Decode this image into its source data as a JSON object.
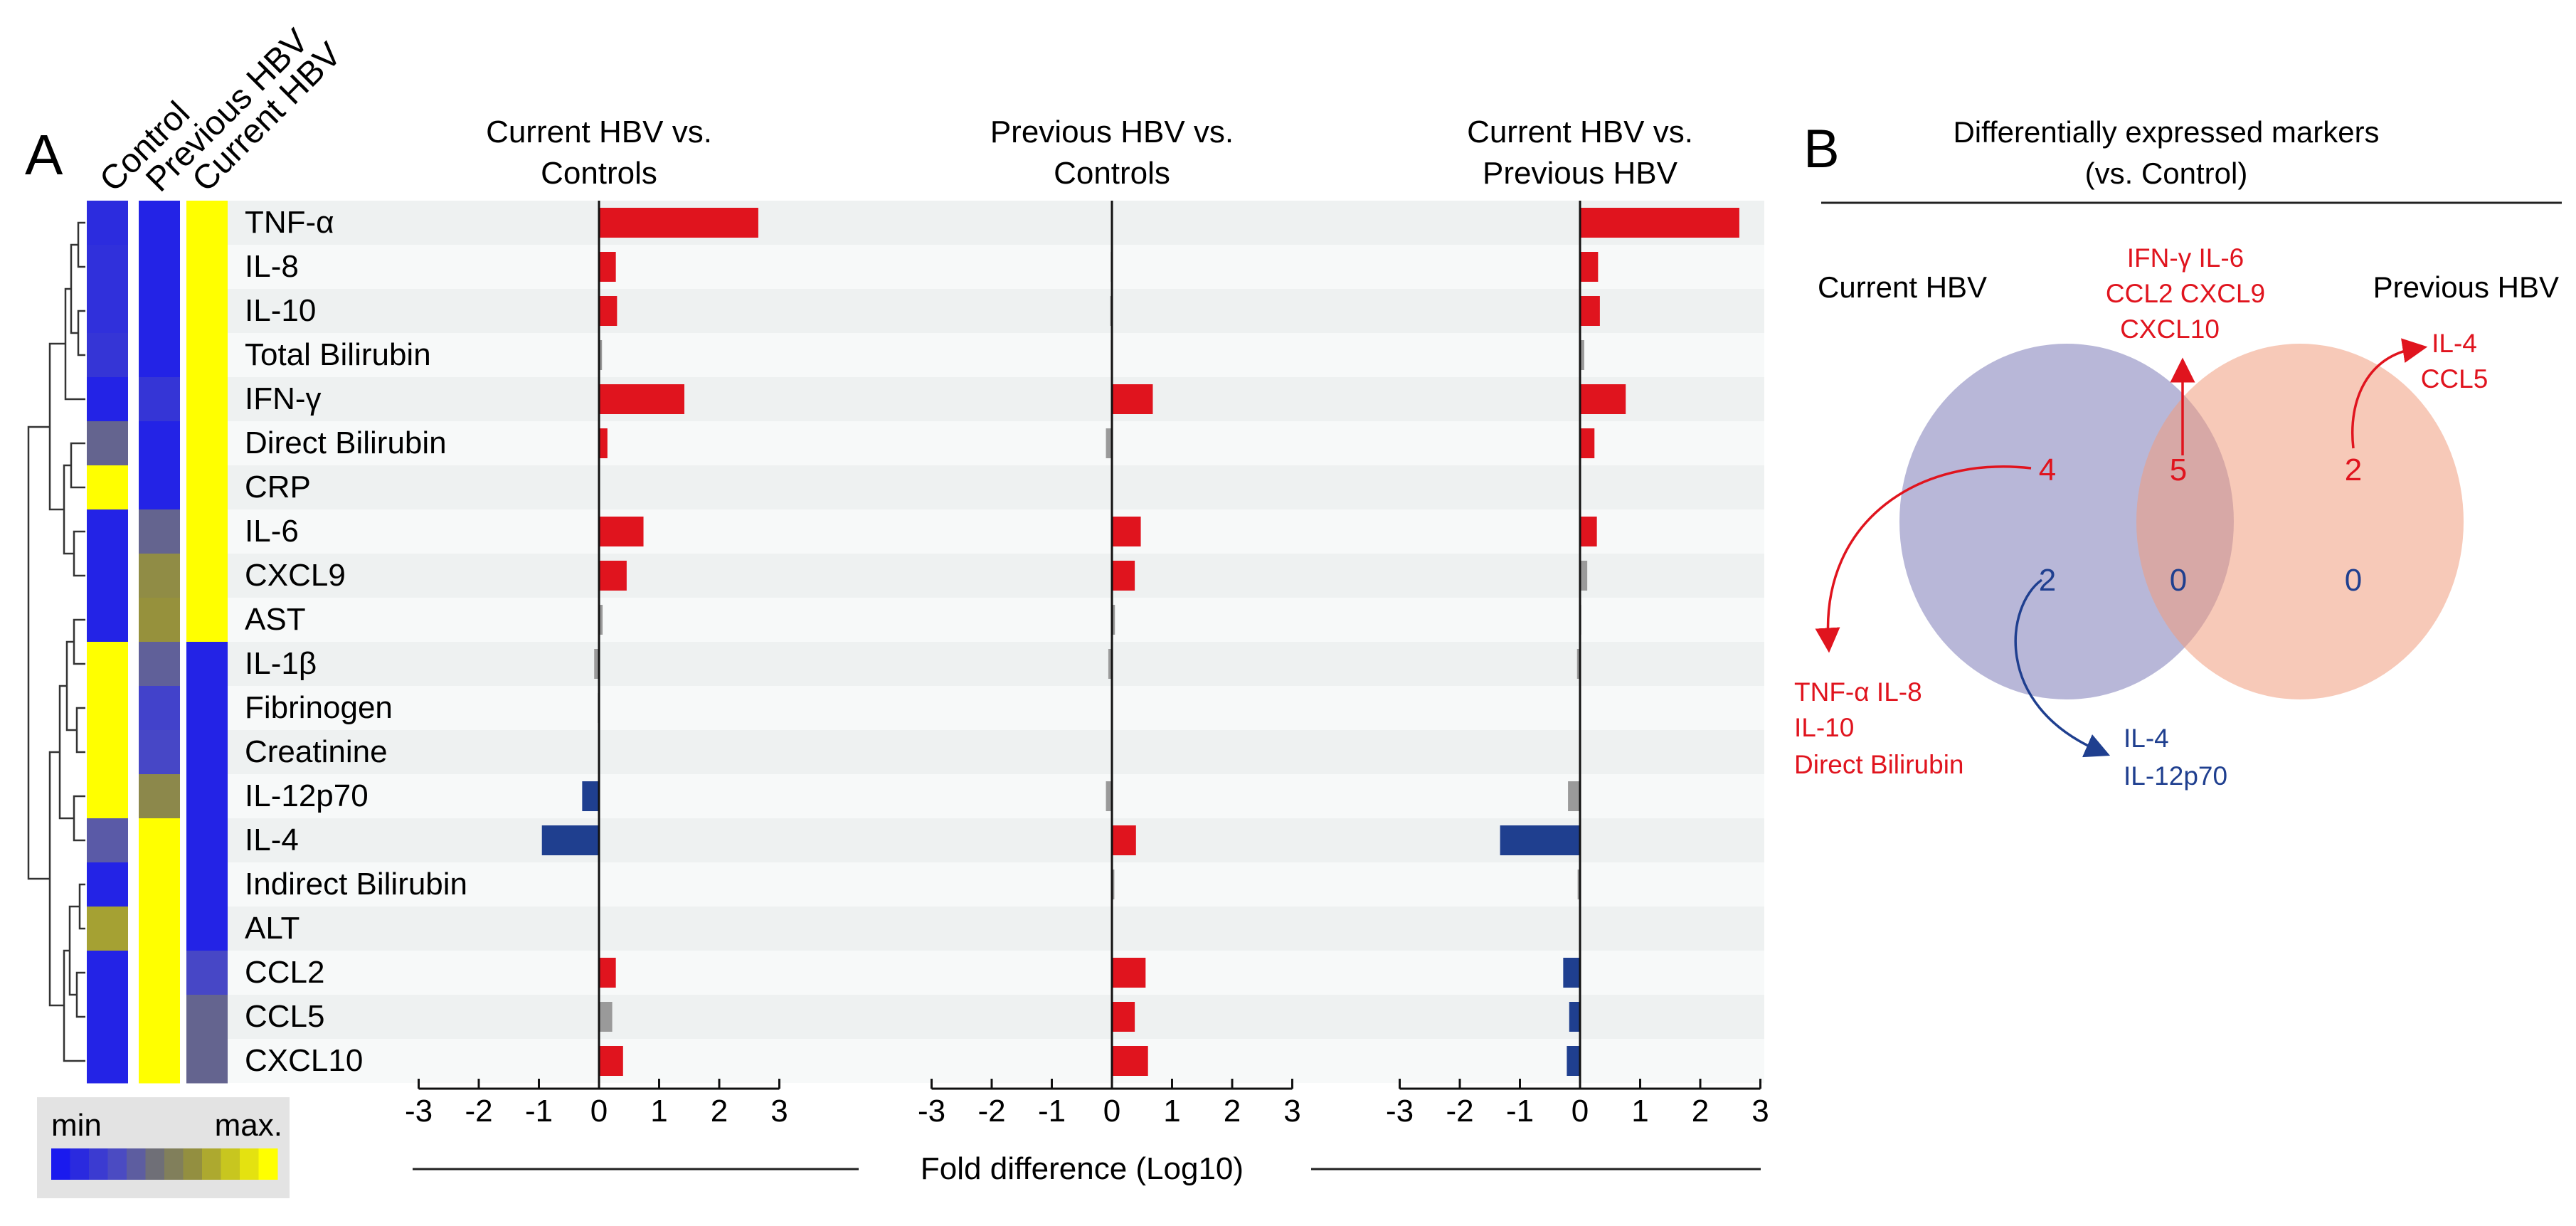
{
  "panel_a": {
    "label": "A",
    "heatmap_columns": [
      "Control",
      "Previous HBV",
      "Current HBV"
    ],
    "legend": {
      "min_label": "min",
      "max_label": "max."
    },
    "x_axis_label": "Fold difference (Log10)"
  },
  "panel_b": {
    "label": "B",
    "title_line1": "Differentially expressed markers",
    "title_line2": "(vs. Control)",
    "set_left_label": "Current HBV",
    "set_right_label": "Previous HBV",
    "counts": {
      "current_up": "4",
      "current_down": "2",
      "shared_up": "5",
      "shared_down": "0",
      "previous_up": "2",
      "previous_down": "0"
    },
    "annotations": {
      "shared_up": [
        "IFN-γ IL-6",
        "CCL2 CXCL9",
        "CXCL10"
      ],
      "previous_up": [
        "IL-4",
        "CCL5"
      ],
      "current_up": [
        "TNF-α IL-8",
        "IL-10",
        "Direct Bilirubin"
      ],
      "current_down": [
        "IL-4",
        "IL-12p70"
      ]
    }
  },
  "colors": {
    "up": "#e0141e",
    "down": "#1f3f8f",
    "ns": "#9a9a9a",
    "heat_blue": "#1a1aee",
    "heat_yellow": "#ffff00",
    "venn_left": "#b3b3d6",
    "venn_right": "#f3c3b0"
  },
  "chart_data": {
    "type": "bar",
    "orientation": "horizontal",
    "categories": [
      "TNF-α",
      "IL-8",
      "IL-10",
      "Total Bilirubin",
      "IFN-γ",
      "Direct Bilirubin",
      "CRP",
      "IL-6",
      "CXCL9",
      "AST",
      "IL-1β",
      "Fibrinogen",
      "Creatinine",
      "IL-12p70",
      "IL-4",
      "Indirect Bilirubin",
      "ALT",
      "CCL2",
      "CCL5",
      "CXCL10"
    ],
    "xlim": [
      -3,
      3
    ],
    "xticks": [
      "-3",
      "-2",
      "-1",
      "0",
      "1",
      "2",
      "3"
    ],
    "xlabel": "Fold difference (Log10)",
    "series": [
      {
        "name": "Current HBV vs. Controls",
        "title_line1": "Current HBV vs.",
        "title_line2": "Controls",
        "values": [
          2.65,
          0.28,
          0.3,
          0.05,
          1.42,
          0.14,
          0,
          0.74,
          0.46,
          0.06,
          -0.08,
          -0.02,
          0,
          -0.28,
          -0.95,
          0,
          0,
          0.28,
          0.22,
          0.4
        ],
        "status": [
          "up",
          "up",
          "up",
          "ns",
          "up",
          "up",
          "ns",
          "up",
          "up",
          "ns",
          "ns",
          "ns",
          "ns",
          "down",
          "down",
          "ns",
          "ns",
          "up",
          "ns",
          "up"
        ]
      },
      {
        "name": "Previous HBV vs. Controls",
        "title_line1": "Previous HBV vs.",
        "title_line2": "Controls",
        "values": [
          0,
          -0.02,
          -0.03,
          -0.02,
          0.68,
          -0.1,
          0,
          0.48,
          0.38,
          0.05,
          -0.06,
          0,
          0,
          -0.1,
          0.4,
          0.04,
          0,
          0.56,
          0.38,
          0.6
        ],
        "status": [
          "ns",
          "ns",
          "ns",
          "ns",
          "up",
          "ns",
          "ns",
          "up",
          "up",
          "ns",
          "ns",
          "ns",
          "ns",
          "ns",
          "up",
          "ns",
          "ns",
          "up",
          "up",
          "up"
        ]
      },
      {
        "name": "Current HBV vs. Previous HBV",
        "title_line1": "Current HBV vs.",
        "title_line2": "Previous HBV",
        "values": [
          2.65,
          0.3,
          0.33,
          0.07,
          0.76,
          0.24,
          0,
          0.28,
          0.12,
          0.02,
          -0.05,
          0,
          0,
          -0.2,
          -1.33,
          -0.04,
          0,
          -0.28,
          -0.18,
          -0.22
        ],
        "status": [
          "up",
          "up",
          "up",
          "ns",
          "up",
          "up",
          "ns",
          "up",
          "ns",
          "ns",
          "ns",
          "ns",
          "ns",
          "ns",
          "down",
          "ns",
          "ns",
          "down",
          "down",
          "down"
        ]
      }
    ],
    "heatmap": {
      "columns": [
        "Control",
        "Previous HBV",
        "Current HBV"
      ],
      "values": [
        [
          0.1,
          0.05,
          1.0
        ],
        [
          0.12,
          0.05,
          1.0
        ],
        [
          0.12,
          0.05,
          1.0
        ],
        [
          0.15,
          0.05,
          1.0
        ],
        [
          0.05,
          0.15,
          1.0
        ],
        [
          0.4,
          0.05,
          1.0
        ],
        [
          1.0,
          0.05,
          1.0
        ],
        [
          0.05,
          0.4,
          1.0
        ],
        [
          0.05,
          0.62,
          1.0
        ],
        [
          0.05,
          0.65,
          1.0
        ],
        [
          1.0,
          0.38,
          0.05
        ],
        [
          1.0,
          0.22,
          0.05
        ],
        [
          1.0,
          0.25,
          0.05
        ],
        [
          1.0,
          0.6,
          0.05
        ],
        [
          0.35,
          1.0,
          0.05
        ],
        [
          0.05,
          1.0,
          0.05
        ],
        [
          0.7,
          1.0,
          0.05
        ],
        [
          0.05,
          1.0,
          0.25
        ],
        [
          0.05,
          1.0,
          0.4
        ],
        [
          0.05,
          1.0,
          0.4
        ]
      ]
    }
  }
}
